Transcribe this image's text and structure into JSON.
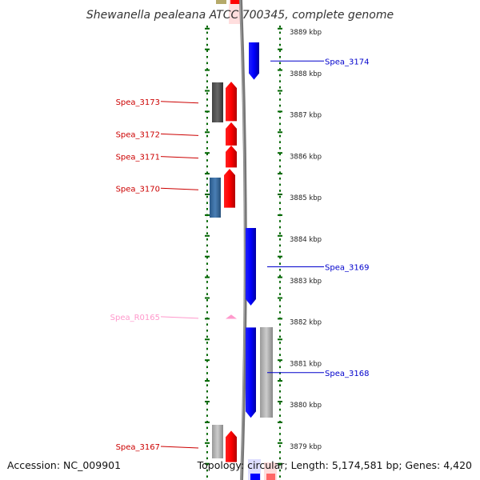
{
  "title": "Shewanella pealeana ATCC 700345, complete genome",
  "footer": {
    "accession": "Accession: NC_009901",
    "summary": "Topology: circular; Length: 5,174,581 bp; Genes: 4,420"
  },
  "colors": {
    "reverse_gene": "#ff0000",
    "forward_gene": "#0000ff",
    "rna_gene": "#ff99cc",
    "ortholog_dark": "#555555",
    "ortholog_blue": "#336699",
    "ortholog_light": "#bbbbbb",
    "tick_green": "#006600",
    "backbone": "#777777"
  },
  "kbp_ticks": [
    {
      "kbp": 3889,
      "label": "3889 kbp"
    },
    {
      "kbp": 3888,
      "label": "3888 kbp"
    },
    {
      "kbp": 3887,
      "label": "3887 kbp"
    },
    {
      "kbp": 3886,
      "label": "3886 kbp"
    },
    {
      "kbp": 3885,
      "label": "3885 kbp"
    },
    {
      "kbp": 3884,
      "label": "3884 kbp"
    },
    {
      "kbp": 3883,
      "label": "3883 kbp"
    },
    {
      "kbp": 3882,
      "label": "3882 kbp"
    },
    {
      "kbp": 3881,
      "label": "3881 kbp"
    },
    {
      "kbp": 3880,
      "label": "3880 kbp"
    },
    {
      "kbp": 3879,
      "label": "3879 kbp"
    }
  ],
  "genes": [
    {
      "name": "Spea_3174",
      "strand": "+",
      "type": "CDS",
      "start_kbp": 3887.85,
      "end_kbp": 3888.75
    },
    {
      "name": "Spea_3173",
      "strand": "-",
      "type": "CDS",
      "start_kbp": 3886.85,
      "end_kbp": 3887.8
    },
    {
      "name": "Spea_3172",
      "strand": "-",
      "type": "CDS",
      "start_kbp": 3886.26,
      "end_kbp": 3886.82
    },
    {
      "name": "Spea_3171",
      "strand": "-",
      "type": "CDS",
      "start_kbp": 3885.73,
      "end_kbp": 3886.26
    },
    {
      "name": "Spea_3170",
      "strand": "-",
      "type": "CDS",
      "start_kbp": 3884.76,
      "end_kbp": 3885.7
    },
    {
      "name": "Spea_3169",
      "strand": "+",
      "type": "CDS",
      "start_kbp": 3882.4,
      "end_kbp": 3884.27
    },
    {
      "name": "Spea_R0165",
      "strand": "-",
      "type": "RNA",
      "start_kbp": 3882.08,
      "end_kbp": 3882.18
    },
    {
      "name": "Spea_3168",
      "strand": "+",
      "type": "CDS",
      "start_kbp": 3879.69,
      "end_kbp": 3881.87
    },
    {
      "name": "Spea_3167",
      "strand": "-",
      "type": "CDS",
      "start_kbp": 3878.62,
      "end_kbp": 3879.38
    }
  ]
}
